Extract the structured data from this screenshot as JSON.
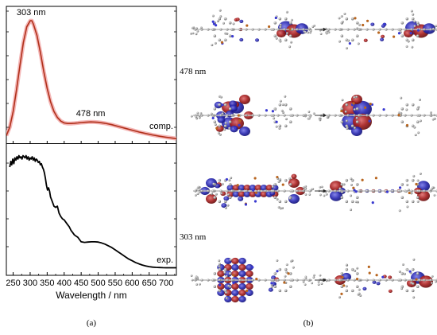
{
  "chart_data": {
    "type": "line",
    "xlabel": "Wavelength / nm",
    "xlim": [
      230,
      730
    ],
    "xticks": [
      "250",
      "300",
      "350",
      "400",
      "450",
      "500",
      "550",
      "600",
      "650",
      "700"
    ],
    "panels": [
      {
        "series": [
          {
            "name": "comp.",
            "color": "#b0301a",
            "glow": "#f4b6b6",
            "x": [
              230,
              240,
              250,
              260,
              270,
              280,
              290,
              300,
              305,
              310,
              320,
              330,
              340,
              350,
              360,
              370,
              380,
              390,
              400,
              410,
              420,
              430,
              440,
              450,
              460,
              470,
              478,
              490,
              500,
              520,
              540,
              560,
              580,
              600,
              620,
              640,
              660,
              680,
              700,
              730
            ],
            "y": [
              0.05,
              0.12,
              0.25,
              0.43,
              0.63,
              0.82,
              0.95,
              1.0,
              1.0,
              0.97,
              0.88,
              0.74,
              0.58,
              0.44,
              0.33,
              0.25,
              0.2,
              0.17,
              0.155,
              0.15,
              0.15,
              0.152,
              0.155,
              0.158,
              0.16,
              0.162,
              0.163,
              0.162,
              0.16,
              0.152,
              0.14,
              0.125,
              0.11,
              0.095,
              0.08,
              0.067,
              0.055,
              0.045,
              0.036,
              0.025
            ]
          }
        ],
        "annotations": [
          {
            "text": "303 nm",
            "x": 303
          },
          {
            "text": "478 nm",
            "x": 478
          }
        ],
        "ylim": [
          0,
          1.08
        ]
      },
      {
        "series": [
          {
            "name": "exp.",
            "color": "#000000",
            "x": [
              240,
              243,
              246,
              249,
              252,
              255,
              258,
              261,
              264,
              267,
              270,
              273,
              276,
              279,
              282,
              285,
              288,
              291,
              294,
              297,
              300,
              303,
              306,
              309,
              312,
              315,
              318,
              321,
              324,
              327,
              330,
              333,
              336,
              339,
              342,
              345,
              348,
              351,
              354,
              357,
              360,
              365,
              370,
              375,
              380,
              385,
              390,
              395,
              400,
              405,
              410,
              415,
              420,
              425,
              430,
              435,
              440,
              445,
              450,
              460,
              470,
              480,
              490,
              500,
              510,
              520,
              530,
              540,
              550,
              560,
              570,
              580,
              590,
              600,
              610,
              620,
              630,
              640,
              650,
              660,
              670,
              680,
              690,
              700,
              710,
              720,
              730
            ],
            "y": [
              0.9,
              0.95,
              0.92,
              0.97,
              0.93,
              0.98,
              0.96,
              0.99,
              0.97,
              1.0,
              0.98,
              0.99,
              0.97,
              1.0,
              0.99,
              0.98,
              1.0,
              0.97,
              0.99,
              0.96,
              0.98,
              0.97,
              0.99,
              0.96,
              0.98,
              0.95,
              0.97,
              0.96,
              0.94,
              0.95,
              0.92,
              0.93,
              0.9,
              0.88,
              0.85,
              0.8,
              0.74,
              0.7,
              0.72,
              0.69,
              0.64,
              0.6,
              0.56,
              0.55,
              0.56,
              0.5,
              0.47,
              0.45,
              0.44,
              0.42,
              0.4,
              0.38,
              0.35,
              0.33,
              0.31,
              0.3,
              0.29,
              0.27,
              0.25,
              0.245,
              0.248,
              0.25,
              0.25,
              0.248,
              0.24,
              0.23,
              0.215,
              0.2,
              0.18,
              0.16,
              0.14,
              0.12,
              0.1,
              0.085,
              0.07,
              0.058,
              0.048,
              0.04,
              0.034,
              0.03,
              0.028,
              0.026,
              0.025,
              0.024,
              0.024,
              0.024,
              0.024
            ]
          }
        ],
        "annotations": [],
        "ylim": [
          0,
          1.08
        ]
      }
    ]
  },
  "side_labels": {
    "upper": "478 nm",
    "lower": "303 nm"
  },
  "panel_labels": {
    "a": "(a)",
    "b": "(b)"
  },
  "orbital_rows": 4
}
